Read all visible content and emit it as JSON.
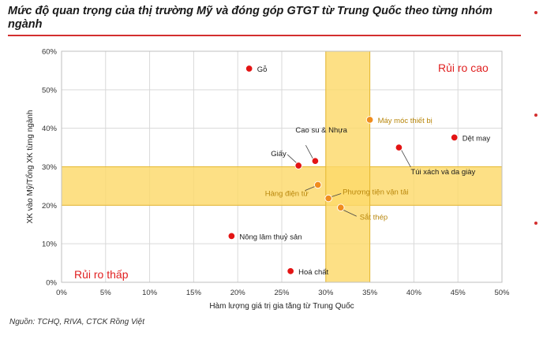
{
  "title": "Mức độ quan trọng của thị trường Mỹ và đóng góp GTGT từ Trung Quốc theo từng nhóm ngành",
  "source": "Nguồn: TCHQ, RIVA, CTCK Rồng Việt",
  "colors": {
    "accent": "#d32f2f",
    "band": "#fcd96a",
    "band_edge": "#e6b830",
    "point_red": "#e31414",
    "point_orange": "#f08c1e",
    "label_dark": "#1a1a1a",
    "label_gold": "#b8860b"
  },
  "chart_data": {
    "type": "scatter",
    "xlabel": "Hàm lượng giá trị gia tăng từ Trung Quốc",
    "ylabel": "XK vào Mỹ/Tổng XK từng ngành",
    "xlim": [
      0,
      50
    ],
    "ylim": [
      0,
      60
    ],
    "x_ticks": [
      "0%",
      "5%",
      "10%",
      "15%",
      "20%",
      "25%",
      "30%",
      "35%",
      "40%",
      "45%",
      "50%"
    ],
    "y_ticks": [
      "0%",
      "10%",
      "20%",
      "30%",
      "40%",
      "50%",
      "60%"
    ],
    "grid": true,
    "zones": {
      "high": "Rủi ro cao",
      "low": "Rủi ro thấp"
    },
    "highlight_bands": {
      "x_range": [
        30,
        35
      ],
      "y_range": [
        20,
        30
      ]
    },
    "points": [
      {
        "label": "Gỗ",
        "x": 21.3,
        "y": 55.5,
        "style": "red"
      },
      {
        "label": "Máy móc thiết bị",
        "x": 35.0,
        "y": 42.2,
        "style": "orange"
      },
      {
        "label": "Dệt may",
        "x": 44.6,
        "y": 37.6,
        "style": "red"
      },
      {
        "label": "Túi xách và da giày",
        "x": 38.3,
        "y": 35.0,
        "style": "red"
      },
      {
        "label": "Cao su & Nhựa",
        "x": 28.8,
        "y": 31.5,
        "style": "red"
      },
      {
        "label": "Giấy",
        "x": 26.9,
        "y": 30.3,
        "style": "red"
      },
      {
        "label": "Hàng điện tử",
        "x": 29.1,
        "y": 25.3,
        "style": "orange"
      },
      {
        "label": "Phương tiện vận tải",
        "x": 30.3,
        "y": 21.8,
        "style": "orange"
      },
      {
        "label": "Sắt thép",
        "x": 31.7,
        "y": 19.4,
        "style": "orange"
      },
      {
        "label": "Nông lâm thuỷ sản",
        "x": 19.3,
        "y": 12.0,
        "style": "red"
      },
      {
        "label": "Hoá chất",
        "x": 26.0,
        "y": 2.9,
        "style": "red"
      }
    ]
  }
}
